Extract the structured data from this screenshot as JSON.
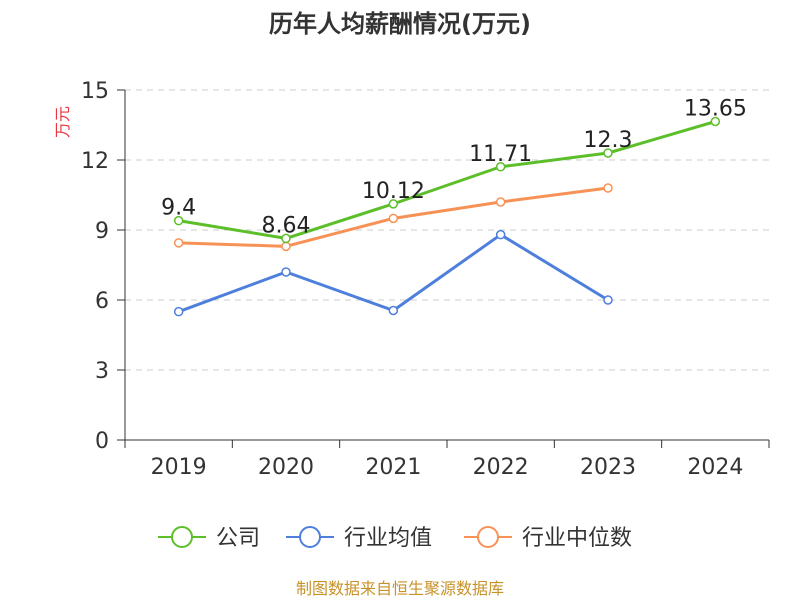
{
  "chart_data": {
    "type": "line",
    "title": "历年人均薪酬情况(万元)",
    "ylabel": "万元",
    "xlabel": "",
    "ylim": [
      0,
      15
    ],
    "yticks": [
      0,
      3,
      6,
      9,
      12,
      15
    ],
    "categories": [
      "2019",
      "2020",
      "2021",
      "2022",
      "2023",
      "2024"
    ],
    "grid": true,
    "legend_position": "bottom",
    "series": [
      {
        "name": "公司",
        "color": "#5cbf2a",
        "values": [
          9.4,
          8.64,
          10.12,
          11.71,
          12.3,
          13.65
        ],
        "labels": [
          "9.4",
          "8.64",
          "10.12",
          "11.71",
          "12.3",
          "13.65"
        ]
      },
      {
        "name": "行业均值",
        "color": "#4f7fdc",
        "values": [
          5.5,
          7.2,
          5.55,
          8.8,
          6.0,
          null
        ]
      },
      {
        "name": "行业中位数",
        "color": "#f79256",
        "values": [
          8.45,
          8.3,
          9.5,
          10.2,
          10.8,
          null
        ]
      }
    ]
  },
  "source": "制图数据来自恒生聚源数据库",
  "colors": {
    "title": "#333333",
    "ylabel": "#e8363c",
    "source": "#c8922a",
    "grid": "#cccccc"
  }
}
